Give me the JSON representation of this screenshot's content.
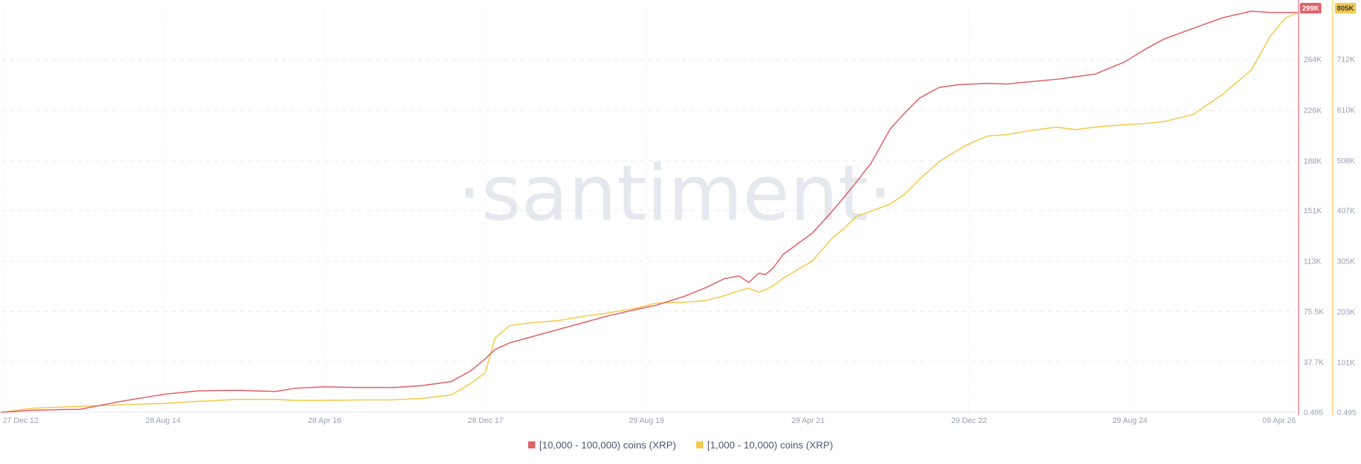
{
  "watermark": "·santiment·",
  "chart_data": {
    "type": "line",
    "x_ticks": [
      "27 Dec 12",
      "28 Aug 14",
      "28 Apr 16",
      "28 Dec 17",
      "29 Aug 19",
      "29 Apr 21",
      "29 Dec 22",
      "29 Aug 24",
      "09 Apr 26"
    ],
    "y_axes": [
      {
        "id": "left",
        "color": "#e0626b",
        "ticks": [
          "0.495",
          "37.7K",
          "75.5K",
          "113K",
          "151K",
          "188K",
          "226K",
          "264K"
        ],
        "tick_values": [
          0.495,
          37700,
          75500,
          113000,
          151000,
          188000,
          226000,
          264000
        ],
        "ylim": [
          0.495,
          302000
        ],
        "last_value_label": "299K"
      },
      {
        "id": "right",
        "color": "#f5c94c",
        "ticks": [
          "0.495",
          "101K",
          "203K",
          "305K",
          "407K",
          "508K",
          "610K",
          "712K"
        ],
        "tick_values": [
          0.495,
          101000,
          203000,
          305000,
          407000,
          508000,
          610000,
          712000
        ],
        "ylim": [
          0.495,
          814000
        ],
        "last_value_label": "805K"
      }
    ],
    "grid": true,
    "legend_position": "bottom-center",
    "series": [
      {
        "name": "[10,000 - 100,000) coins (XRP)",
        "color": "#e0626b",
        "axis": "left",
        "x": [
          2012.99,
          2013.3,
          2013.8,
          2014.2,
          2014.66,
          2015.0,
          2015.4,
          2015.8,
          2016.0,
          2016.3,
          2016.7,
          2017.0,
          2017.3,
          2017.6,
          2017.8,
          2017.95,
          2018.05,
          2018.2,
          2018.4,
          2018.7,
          2019.0,
          2019.2,
          2019.5,
          2019.7,
          2020.0,
          2020.2,
          2020.4,
          2020.55,
          2020.65,
          2020.75,
          2020.82,
          2020.9,
          2021.0,
          2021.3,
          2021.5,
          2021.65,
          2021.75,
          2021.9,
          2022.1,
          2022.25,
          2022.4,
          2022.6,
          2022.8,
          2022.95,
          2023.1,
          2023.3,
          2023.5,
          2023.8,
          2024.0,
          2024.2,
          2024.5,
          2024.7,
          2024.9,
          2025.2,
          2025.5,
          2025.8,
          2026.0,
          2026.15,
          2026.27
        ],
        "values": [
          0,
          1500,
          2300,
          8000,
          13500,
          16000,
          16500,
          15500,
          18000,
          19000,
          18500,
          18500,
          20000,
          23000,
          31000,
          40000,
          47000,
          52000,
          56000,
          62000,
          68000,
          72000,
          77000,
          80000,
          87000,
          93000,
          100000,
          102000,
          97000,
          104000,
          103000,
          108000,
          118000,
          134000,
          150000,
          163000,
          172000,
          186000,
          212000,
          224000,
          235000,
          243000,
          245000,
          245500,
          246000,
          245500,
          247000,
          249000,
          251000,
          253000,
          262000,
          271000,
          279000,
          287000,
          295000,
          300000,
          299000,
          299000,
          299000
        ]
      },
      {
        "name": "[1,000 - 10,000) coins (XRP)",
        "color": "#f5c94c",
        "axis": "right",
        "x": [
          2012.99,
          2013.3,
          2013.8,
          2014.2,
          2014.66,
          2015.0,
          2015.4,
          2015.8,
          2016.0,
          2016.3,
          2016.7,
          2017.0,
          2017.3,
          2017.6,
          2017.8,
          2017.95,
          2018.05,
          2018.2,
          2018.4,
          2018.7,
          2019.0,
          2019.2,
          2019.5,
          2019.7,
          2020.0,
          2020.2,
          2020.4,
          2020.55,
          2020.65,
          2020.75,
          2020.82,
          2020.9,
          2021.0,
          2021.3,
          2021.5,
          2021.65,
          2021.75,
          2021.9,
          2022.1,
          2022.25,
          2022.4,
          2022.6,
          2022.8,
          2022.95,
          2023.1,
          2023.3,
          2023.5,
          2023.8,
          2024.0,
          2024.2,
          2024.5,
          2024.7,
          2024.9,
          2025.2,
          2025.5,
          2025.8,
          2026.0,
          2026.15,
          2026.27
        ],
        "values": [
          0,
          8000,
          12000,
          15000,
          18000,
          22000,
          26000,
          26000,
          24000,
          24000,
          25000,
          25000,
          28000,
          35000,
          58000,
          80000,
          150000,
          175000,
          180000,
          185000,
          195000,
          200000,
          210000,
          220000,
          222000,
          225000,
          235000,
          245000,
          250000,
          242000,
          247000,
          255000,
          270000,
          305000,
          350000,
          375000,
          395000,
          405000,
          420000,
          440000,
          470000,
          505000,
          530000,
          545000,
          557000,
          560000,
          567000,
          575000,
          570000,
          575000,
          580000,
          582000,
          586000,
          600000,
          640000,
          690000,
          760000,
          795000,
          805000
        ]
      }
    ]
  }
}
